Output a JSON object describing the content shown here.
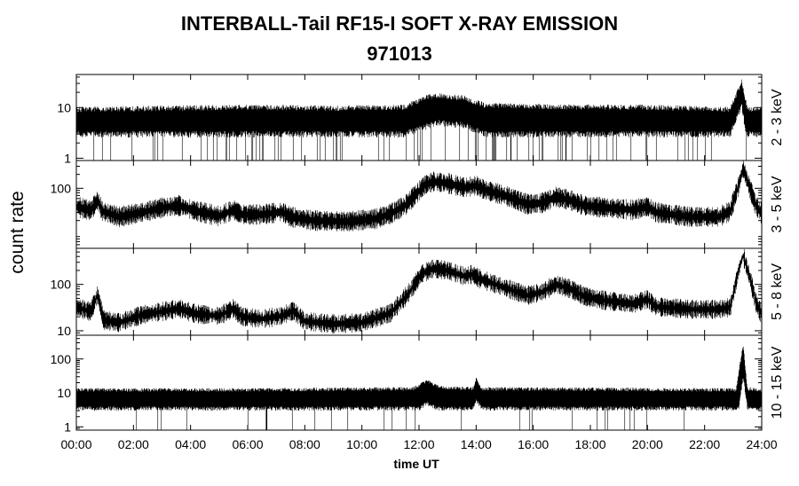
{
  "chart_data": {
    "type": "line",
    "title": "INTERBALL-Tail RF15-I SOFT X-RAY EMISSION",
    "subtitle": "971013",
    "ylabel": "count rate",
    "xlabel": "time UT",
    "xlim": [
      0,
      24
    ],
    "x_ticks": [
      "00:00",
      "02:00",
      "04:00",
      "06:00",
      "08:00",
      "10:00",
      "12:00",
      "14:00",
      "16:00",
      "18:00",
      "20:00",
      "22:00",
      "24:00"
    ],
    "panels": [
      {
        "name": "2 - 3 keV",
        "yscale": "log",
        "ylim": [
          0.9,
          45
        ],
        "y_ticks": [
          {
            "v": 1,
            "label": "1"
          },
          {
            "v": 10,
            "label": "10"
          }
        ],
        "band_low": [
          [
            0,
            3
          ],
          [
            3,
            3
          ],
          [
            6,
            3
          ],
          [
            9,
            3
          ],
          [
            11.5,
            3
          ],
          [
            12.1,
            4
          ],
          [
            12.7,
            5
          ],
          [
            13.6,
            4.5
          ],
          [
            14.3,
            3
          ],
          [
            17,
            3
          ],
          [
            20,
            3
          ],
          [
            22.9,
            3
          ],
          [
            23.3,
            11
          ],
          [
            23.45,
            3
          ],
          [
            24,
            3
          ]
        ],
        "band_high": [
          [
            0,
            9
          ],
          [
            3,
            9.5
          ],
          [
            6,
            10
          ],
          [
            9,
            9.5
          ],
          [
            11.5,
            10
          ],
          [
            12.3,
            16
          ],
          [
            12.8,
            17
          ],
          [
            13.6,
            15
          ],
          [
            14.3,
            11
          ],
          [
            17,
            10
          ],
          [
            20,
            10
          ],
          [
            22.9,
            9
          ],
          [
            23.3,
            32
          ],
          [
            23.5,
            9
          ],
          [
            24,
            9
          ]
        ],
        "drop_rate": 0.06
      },
      {
        "name": "3 - 5 keV",
        "yscale": "log",
        "ylim": [
          5,
          400
        ],
        "y_ticks": [
          {
            "v": 100,
            "label": "100"
          }
        ],
        "curve": [
          [
            0,
            40
          ],
          [
            0.5,
            33
          ],
          [
            0.75,
            55
          ],
          [
            0.9,
            32
          ],
          [
            1.5,
            24
          ],
          [
            2.3,
            30
          ],
          [
            3.0,
            38
          ],
          [
            3.6,
            42
          ],
          [
            4.2,
            32
          ],
          [
            5.0,
            25
          ],
          [
            5.5,
            34
          ],
          [
            5.8,
            27
          ],
          [
            6.5,
            27
          ],
          [
            7.2,
            31
          ],
          [
            7.5,
            24
          ],
          [
            8.3,
            20
          ],
          [
            9.5,
            19
          ],
          [
            10.5,
            22
          ],
          [
            11.0,
            28
          ],
          [
            11.5,
            42
          ],
          [
            11.9,
            75
          ],
          [
            12.2,
            118
          ],
          [
            12.5,
            140
          ],
          [
            13.0,
            128
          ],
          [
            13.6,
            104
          ],
          [
            14.0,
            115
          ],
          [
            14.3,
            92
          ],
          [
            15.0,
            70
          ],
          [
            15.8,
            45
          ],
          [
            16.3,
            48
          ],
          [
            16.8,
            65
          ],
          [
            17.3,
            55
          ],
          [
            17.8,
            42
          ],
          [
            18.5,
            38
          ],
          [
            19.5,
            34
          ],
          [
            20.0,
            40
          ],
          [
            20.3,
            30
          ],
          [
            21.5,
            24
          ],
          [
            22.5,
            24
          ],
          [
            22.9,
            32
          ],
          [
            23.2,
            120
          ],
          [
            23.35,
            270
          ],
          [
            23.6,
            95
          ],
          [
            23.8,
            42
          ],
          [
            24,
            28
          ]
        ],
        "spread": 1.35
      },
      {
        "name": "5 - 8 keV",
        "yscale": "log",
        "ylim": [
          8,
          600
        ],
        "y_ticks": [
          {
            "v": 10,
            "label": "10"
          },
          {
            "v": 100,
            "label": "100"
          }
        ],
        "curve": [
          [
            0,
            32
          ],
          [
            0.5,
            26
          ],
          [
            0.75,
            60
          ],
          [
            0.95,
            17
          ],
          [
            1.5,
            15
          ],
          [
            2.3,
            22
          ],
          [
            3.0,
            26
          ],
          [
            3.6,
            30
          ],
          [
            4.2,
            23
          ],
          [
            5.0,
            21
          ],
          [
            5.5,
            30
          ],
          [
            5.8,
            20
          ],
          [
            6.5,
            18
          ],
          [
            7.2,
            21
          ],
          [
            7.6,
            27
          ],
          [
            8.0,
            16
          ],
          [
            9.0,
            14
          ],
          [
            10.0,
            15
          ],
          [
            11.0,
            24
          ],
          [
            11.6,
            60
          ],
          [
            12.1,
            170
          ],
          [
            12.5,
            220
          ],
          [
            13.0,
            200
          ],
          [
            13.6,
            150
          ],
          [
            13.85,
            165
          ],
          [
            14.1,
            135
          ],
          [
            15.0,
            85
          ],
          [
            15.8,
            58
          ],
          [
            16.3,
            68
          ],
          [
            16.8,
            100
          ],
          [
            17.3,
            80
          ],
          [
            17.8,
            55
          ],
          [
            18.5,
            45
          ],
          [
            19.5,
            38
          ],
          [
            20.0,
            48
          ],
          [
            20.3,
            33
          ],
          [
            21.5,
            29
          ],
          [
            22.5,
            29
          ],
          [
            22.9,
            32
          ],
          [
            23.2,
            210
          ],
          [
            23.35,
            420
          ],
          [
            23.6,
            130
          ],
          [
            23.8,
            40
          ],
          [
            24,
            22
          ]
        ],
        "spread": 1.3
      },
      {
        "name": "10 - 15 keV",
        "yscale": "log",
        "ylim": [
          0.8,
          500
        ],
        "y_ticks": [
          {
            "v": 1,
            "label": "1"
          },
          {
            "v": 10,
            "label": "10"
          },
          {
            "v": 100,
            "label": "100"
          }
        ],
        "band_low": [
          [
            0,
            3.5
          ],
          [
            6,
            3.5
          ],
          [
            12,
            3.5
          ],
          [
            12.3,
            5
          ],
          [
            12.6,
            3.5
          ],
          [
            13.9,
            3.5
          ],
          [
            14,
            6
          ],
          [
            14.2,
            3.5
          ],
          [
            23.2,
            3.5
          ],
          [
            23.35,
            30
          ],
          [
            23.5,
            3.5
          ],
          [
            24,
            3.5
          ]
        ],
        "band_high": [
          [
            0,
            12
          ],
          [
            6,
            12
          ],
          [
            11.8,
            13
          ],
          [
            12.3,
            22
          ],
          [
            12.7,
            14
          ],
          [
            13.9,
            13
          ],
          [
            14.0,
            25
          ],
          [
            14.2,
            13
          ],
          [
            23.1,
            12
          ],
          [
            23.35,
            260
          ],
          [
            23.5,
            13
          ],
          [
            24,
            12
          ]
        ],
        "drop_rate": 0.025
      }
    ]
  }
}
